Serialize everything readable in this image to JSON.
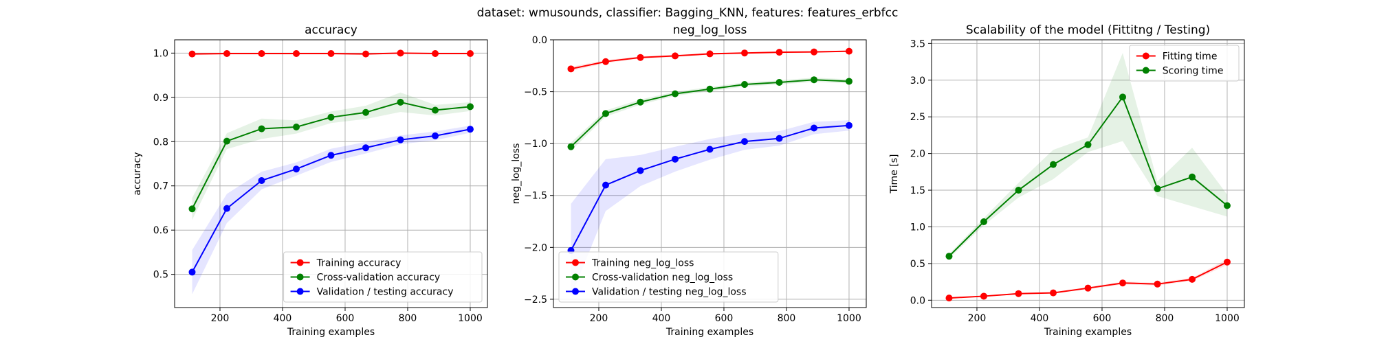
{
  "figure": {
    "suptitle": "dataset: wmusounds, classifier: Bagging_KNN, features: features_erbfcc"
  },
  "colors": {
    "train": "#ff0000",
    "cv": "#008000",
    "test": "#0000ff",
    "grid": "#b0b0b0"
  },
  "chart_data": [
    {
      "type": "line",
      "title": "accuracy",
      "xlabel": "Training examples",
      "ylabel": "accuracy",
      "xlim": [
        55,
        1055
      ],
      "ylim": [
        0.425,
        1.03
      ],
      "xticks": [
        200,
        400,
        600,
        800,
        1000
      ],
      "xtick_labels": [
        "200",
        "400",
        "600",
        "800",
        "1000"
      ],
      "yticks": [
        0.5,
        0.6,
        0.7,
        0.8,
        0.9,
        1.0
      ],
      "ytick_labels": [
        "0.5",
        "0.6",
        "0.7",
        "0.8",
        "0.9",
        "1.0"
      ],
      "grid": true,
      "legend_position": "lower-right",
      "x": [
        111,
        222,
        333,
        444,
        555,
        666,
        777,
        888,
        1000
      ],
      "series": [
        {
          "name": "Training accuracy",
          "color": "#ff0000",
          "values": [
            0.998,
            0.999,
            0.999,
            0.999,
            0.999,
            0.998,
            1.0,
            0.999,
            0.999
          ],
          "std": [
            0.003,
            0.002,
            0.002,
            0.002,
            0.002,
            0.002,
            0.001,
            0.002,
            0.002
          ]
        },
        {
          "name": "Cross-validation accuracy",
          "color": "#008000",
          "values": [
            0.648,
            0.801,
            0.829,
            0.833,
            0.855,
            0.866,
            0.889,
            0.871,
            0.879
          ],
          "std": [
            0.025,
            0.018,
            0.023,
            0.015,
            0.013,
            0.015,
            0.022,
            0.012,
            0.01
          ]
        },
        {
          "name": "Validation / testing accuracy",
          "color": "#0000ff",
          "values": [
            0.505,
            0.649,
            0.712,
            0.738,
            0.769,
            0.786,
            0.804,
            0.813,
            0.828
          ],
          "std": [
            0.05,
            0.033,
            0.02,
            0.015,
            0.015,
            0.013,
            0.01,
            0.01,
            0.008
          ]
        }
      ]
    },
    {
      "type": "line",
      "title": "neg_log_loss",
      "xlabel": "Training examples",
      "ylabel": "neg_log_loss",
      "xlim": [
        55,
        1055
      ],
      "ylim": [
        -2.58,
        0.0
      ],
      "xticks": [
        200,
        400,
        600,
        800,
        1000
      ],
      "xtick_labels": [
        "200",
        "400",
        "600",
        "800",
        "1000"
      ],
      "yticks": [
        -2.5,
        -2.0,
        -1.5,
        -1.0,
        -0.5,
        0.0
      ],
      "ytick_labels": [
        "−2.5",
        "−2.0",
        "−1.5",
        "−1.0",
        "−0.5",
        "0.0"
      ],
      "grid": true,
      "legend_position": "lower-left",
      "x": [
        111,
        222,
        333,
        444,
        555,
        666,
        777,
        888,
        1000
      ],
      "series": [
        {
          "name": "Training neg_log_loss",
          "color": "#ff0000",
          "values": [
            -0.28,
            -0.21,
            -0.17,
            -0.155,
            -0.135,
            -0.127,
            -0.12,
            -0.117,
            -0.11
          ],
          "std": [
            0.02,
            0.015,
            0.01,
            0.01,
            0.008,
            0.008,
            0.008,
            0.008,
            0.007
          ]
        },
        {
          "name": "Cross-validation neg_log_loss",
          "color": "#008000",
          "values": [
            -1.03,
            -0.71,
            -0.6,
            -0.52,
            -0.475,
            -0.43,
            -0.41,
            -0.385,
            -0.4
          ],
          "std": [
            0.04,
            0.03,
            0.025,
            0.02,
            0.02,
            0.02,
            0.02,
            0.02,
            0.02
          ]
        },
        {
          "name": "Validation / testing neg_log_loss",
          "color": "#0000ff",
          "values": [
            -2.03,
            -1.4,
            -1.26,
            -1.15,
            -1.055,
            -0.98,
            -0.95,
            -0.85,
            -0.825
          ],
          "std": [
            0.45,
            0.25,
            0.15,
            0.12,
            0.1,
            0.08,
            0.07,
            0.06,
            0.05
          ]
        }
      ]
    },
    {
      "type": "line",
      "title": "Scalability of the model (Fittitng / Testing)",
      "xlabel": "Training examples",
      "ylabel": "Time [s]",
      "xlim": [
        55,
        1055
      ],
      "ylim": [
        -0.1,
        3.55
      ],
      "xticks": [
        200,
        400,
        600,
        800,
        1000
      ],
      "xtick_labels": [
        "200",
        "400",
        "600",
        "800",
        "1000"
      ],
      "yticks": [
        0.0,
        0.5,
        1.0,
        1.5,
        2.0,
        2.5,
        3.0,
        3.5
      ],
      "ytick_labels": [
        "0.0",
        "0.5",
        "1.0",
        "1.5",
        "2.0",
        "2.5",
        "3.0",
        "3.5"
      ],
      "grid": true,
      "legend_position": "upper-right",
      "x": [
        111,
        222,
        333,
        444,
        555,
        666,
        777,
        888,
        1000
      ],
      "series": [
        {
          "name": "Fitting time",
          "color": "#ff0000",
          "values": [
            0.03,
            0.055,
            0.09,
            0.1,
            0.165,
            0.235,
            0.22,
            0.285,
            0.52
          ],
          "std": [
            0.005,
            0.008,
            0.01,
            0.01,
            0.015,
            0.02,
            0.02,
            0.02,
            0.04
          ]
        },
        {
          "name": "Scoring time",
          "color": "#008000",
          "values": [
            0.6,
            1.07,
            1.5,
            1.85,
            2.12,
            2.77,
            1.52,
            1.68,
            1.29
          ],
          "std": [
            0.03,
            0.05,
            0.1,
            0.2,
            0.1,
            0.6,
            0.1,
            0.4,
            0.15
          ]
        }
      ]
    }
  ]
}
